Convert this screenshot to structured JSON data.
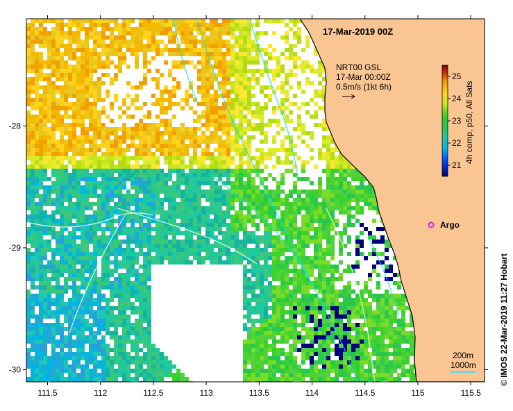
{
  "map": {
    "title": "17-Mar-2019 00Z",
    "info_lines": [
      "NRT00 GSL",
      "17-Mar 00:00Z",
      "0.5m/s (1kt 6h)"
    ],
    "argo_label": "Argo",
    "credit": "© IMOS 22-Mar-2019 11:27 Hobart",
    "scale_labels": [
      "200m",
      "1000m"
    ],
    "lon_ticks": [
      "111.5",
      "112",
      "112.5",
      "113",
      "113.5",
      "114",
      "114.5",
      "115",
      "115.5"
    ],
    "lat_ticks": [
      "-28",
      "-29",
      "-30"
    ],
    "lon_range": [
      111.3,
      115.63
    ],
    "lat_range": [
      -30.1,
      -27.12
    ],
    "colorbar": {
      "label": "4h comp, p50, All Sats",
      "min": 20.5,
      "max": 25.5,
      "ticks": [
        "21",
        "22",
        "23",
        "24",
        "25"
      ]
    },
    "colors": {
      "land": "#f9c592",
      "coastline": "#000000",
      "bathymetry": "#00e5ff",
      "isobath": "#ffffff",
      "argo": "#e020e0"
    }
  }
}
